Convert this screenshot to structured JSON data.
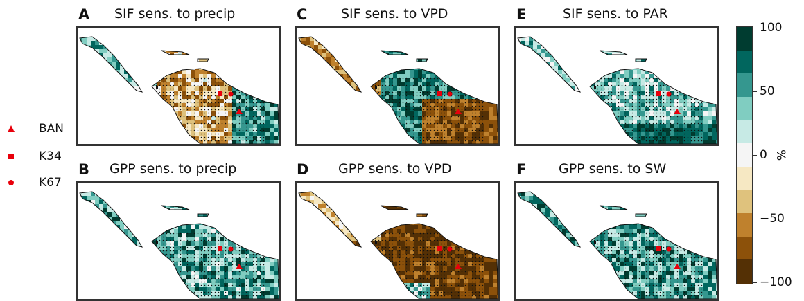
{
  "panels": [
    {
      "letter": "A",
      "title": "SIF sens. to precip",
      "scheme": "dry_mix"
    },
    {
      "letter": "C",
      "title": "SIF sens. to VPD",
      "scheme": "vpd_sif"
    },
    {
      "letter": "E",
      "title": "SIF sens. to PAR",
      "scheme": "light_pos"
    },
    {
      "letter": "B",
      "title": "GPP sens. to precip",
      "scheme": "wet_pos"
    },
    {
      "letter": "D",
      "title": "GPP sens. to VPD",
      "scheme": "vpd_gpp"
    },
    {
      "letter": "F",
      "title": "GPP sens. to SW",
      "scheme": "sw_pos"
    }
  ],
  "legend": {
    "items": [
      {
        "marker": "triangle",
        "label": "BAN"
      },
      {
        "marker": "square",
        "label": "K34"
      },
      {
        "marker": "circle",
        "label": "K67"
      }
    ],
    "marker_color": "#e8000b"
  },
  "colorbar": {
    "ticks": [
      "100",
      "50",
      "0",
      "−50",
      "−100"
    ],
    "unit": "%",
    "range": [
      -100,
      100
    ],
    "colors": [
      "#543005",
      "#8c510a",
      "#bf812d",
      "#dfc27d",
      "#f6e8c3",
      "#f5f5f5",
      "#c7eae5",
      "#80cdc1",
      "#35978f",
      "#01665e",
      "#003c30"
    ]
  }
}
